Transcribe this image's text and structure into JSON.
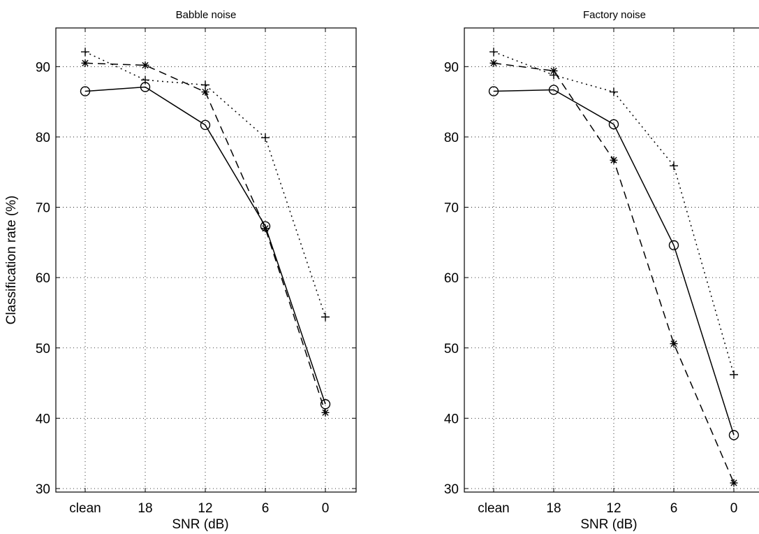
{
  "chart_data": [
    {
      "type": "line",
      "title": "Babble noise",
      "xlabel": "SNR (dB)",
      "ylabel": "Classification rate (%)",
      "categories": [
        "clean",
        "18",
        "12",
        "6",
        "0"
      ],
      "yticks": [
        30,
        40,
        50,
        60,
        70,
        80,
        90
      ],
      "ylim": [
        29.5,
        95.5
      ],
      "grid": true,
      "series": [
        {
          "style": "solid",
          "marker": "circle",
          "values": [
            86.5,
            87.1,
            81.7,
            67.3,
            42.0
          ]
        },
        {
          "style": "dashed",
          "marker": "asterisk",
          "values": [
            90.5,
            90.2,
            86.4,
            67.0,
            40.8
          ]
        },
        {
          "style": "dotted",
          "marker": "plus",
          "values": [
            92.1,
            88.1,
            87.4,
            79.9,
            54.4
          ]
        }
      ]
    },
    {
      "type": "line",
      "title": "Factory noise",
      "xlabel": "SNR (dB)",
      "ylabel": "",
      "categories": [
        "clean",
        "18",
        "12",
        "6",
        "0"
      ],
      "yticks": [
        30,
        40,
        50,
        60,
        70,
        80,
        90
      ],
      "ylim": [
        29.5,
        95.5
      ],
      "grid": true,
      "series": [
        {
          "style": "solid",
          "marker": "circle",
          "values": [
            86.5,
            86.7,
            81.8,
            64.6,
            37.6
          ]
        },
        {
          "style": "dashed",
          "marker": "asterisk",
          "values": [
            90.5,
            89.4,
            76.7,
            50.6,
            30.8
          ]
        },
        {
          "style": "dotted",
          "marker": "plus",
          "values": [
            92.1,
            88.8,
            86.4,
            75.9,
            46.2
          ]
        }
      ]
    }
  ]
}
